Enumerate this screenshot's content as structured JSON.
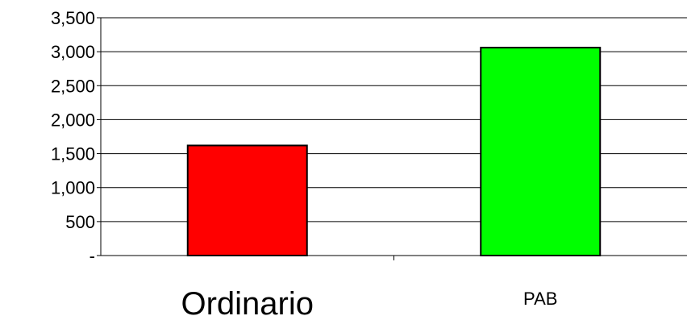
{
  "chart_data": {
    "type": "bar",
    "categories": [
      "Ordinario",
      "PAB"
    ],
    "values": [
      1620,
      3060
    ],
    "ylim": [
      0,
      3500
    ],
    "yticks": [
      0,
      500,
      1000,
      1500,
      2000,
      2500,
      3000,
      3500
    ],
    "ytick_labels": [
      "-",
      "500",
      "1,000",
      "1,500",
      "2,000",
      "2,500",
      "3,000",
      "3,500"
    ],
    "colors": [
      "#ff0000",
      "#00ff00"
    ],
    "grid": true,
    "legend": "none",
    "title": "",
    "xlabel": "",
    "ylabel": ""
  }
}
